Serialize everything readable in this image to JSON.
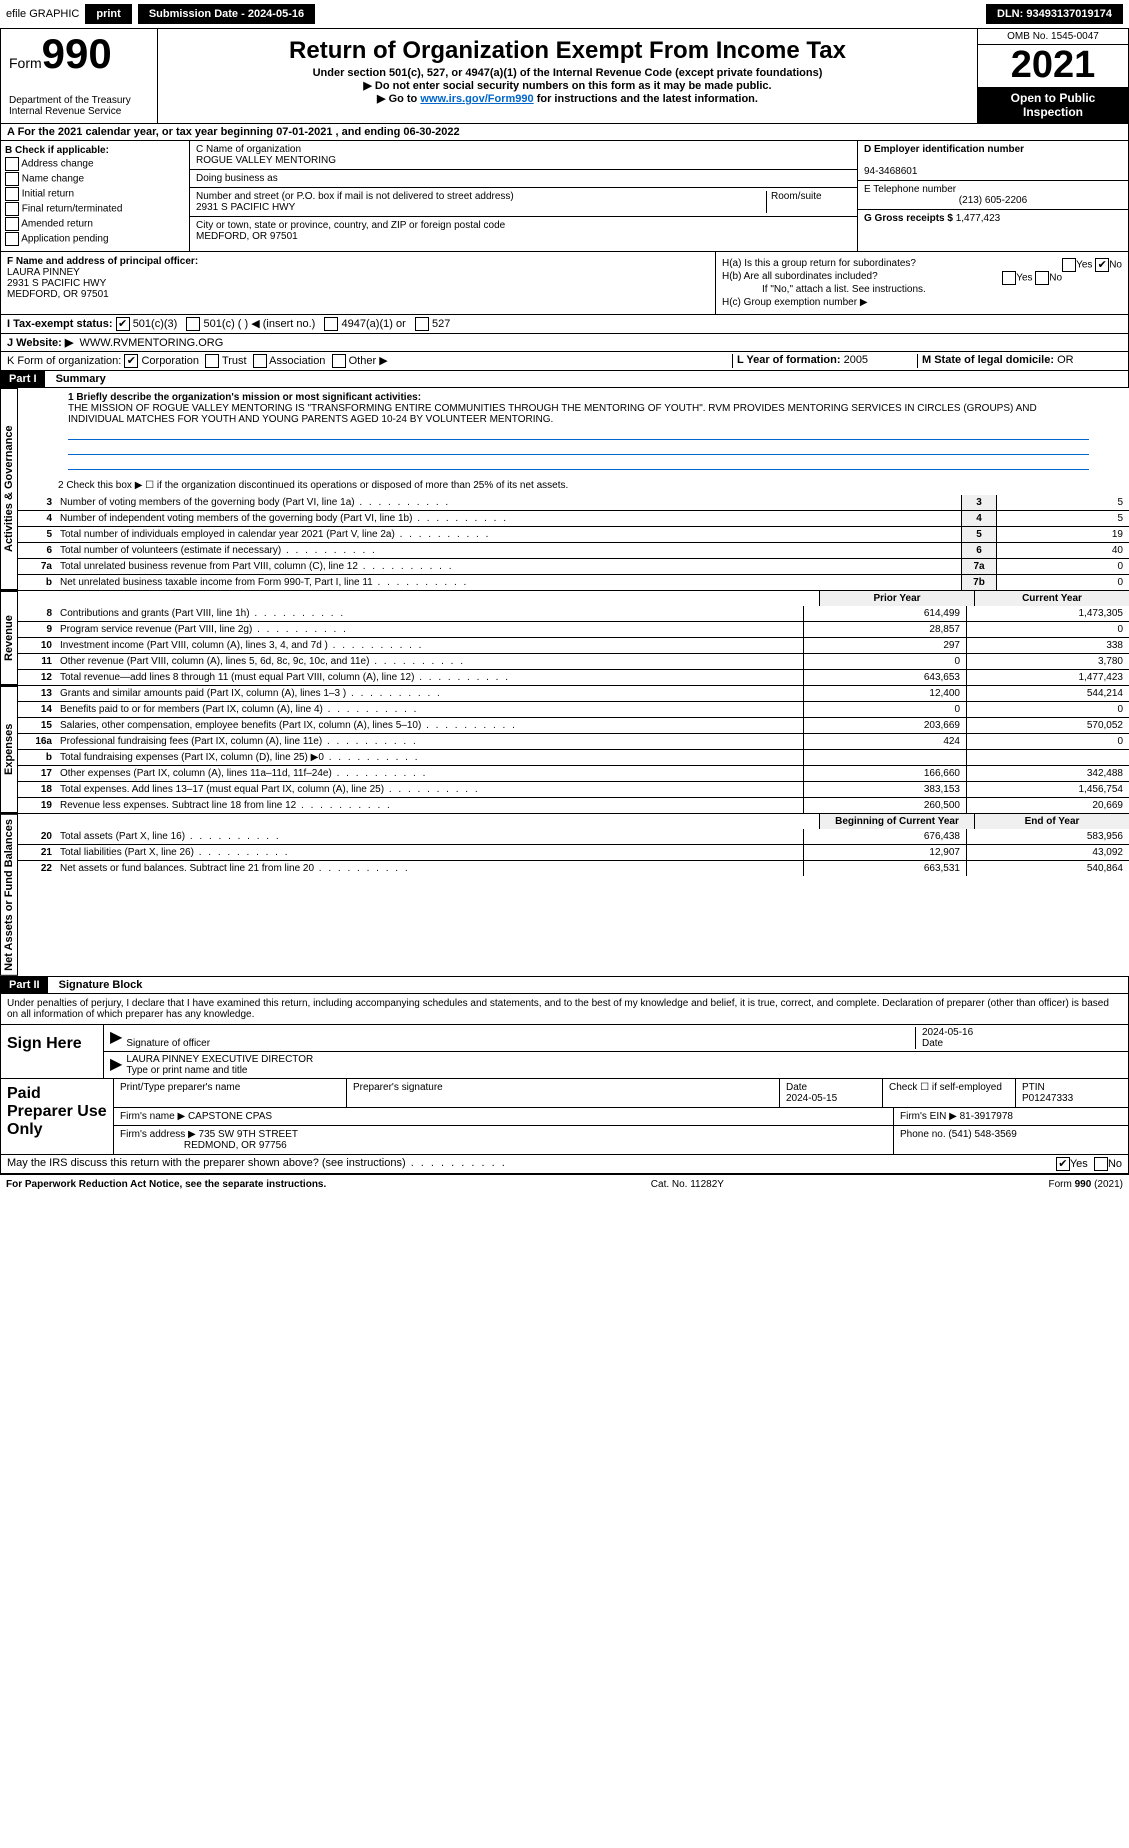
{
  "topbar": {
    "efile": "efile GRAPHIC",
    "print": "print",
    "subdate_label": "Submission Date - 2024-05-16",
    "dln_label": "DLN: 93493137019174"
  },
  "header": {
    "form_label": "Form",
    "form_num": "990",
    "dept": "Department of the Treasury",
    "irs": "Internal Revenue Service",
    "title": "Return of Organization Exempt From Income Tax",
    "subtitle": "Under section 501(c), 527, or 4947(a)(1) of the Internal Revenue Code (except private foundations)",
    "note1": "▶ Do not enter social security numbers on this form as it may be made public.",
    "note2_pre": "▶ Go to ",
    "note2_link": "www.irs.gov/Form990",
    "note2_post": " for instructions and the latest information.",
    "omb": "OMB No. 1545-0047",
    "year": "2021",
    "open": "Open to Public Inspection"
  },
  "period": {
    "line": "A For the 2021 calendar year, or tax year beginning 07-01-2021    , and ending 06-30-2022"
  },
  "box_b": {
    "label": "B Check if applicable:",
    "addr": "Address change",
    "name": "Name change",
    "initial": "Initial return",
    "final": "Final return/terminated",
    "amended": "Amended return",
    "app": "Application pending"
  },
  "box_c": {
    "name_label": "C Name of organization",
    "name": "ROGUE VALLEY MENTORING",
    "dba_label": "Doing business as",
    "street_label": "Number and street (or P.O. box if mail is not delivered to street address)",
    "room_label": "Room/suite",
    "street": "2931 S PACIFIC HWY",
    "city_label": "City or town, state or province, country, and ZIP or foreign postal code",
    "city": "MEDFORD, OR  97501"
  },
  "box_d": {
    "ein_label": "D Employer identification number",
    "ein": "94-3468601"
  },
  "box_e": {
    "tel_label": "E Telephone number",
    "tel": "(213) 605-2206"
  },
  "box_g": {
    "gross_label": "G Gross receipts $",
    "gross": "1,477,423"
  },
  "box_f": {
    "label": "F  Name and address of principal officer:",
    "name": "LAURA PINNEY",
    "addr1": "2931 S PACIFIC HWY",
    "addr2": "MEDFORD, OR  97501"
  },
  "box_h": {
    "ha": "H(a)  Is this a group return for subordinates?",
    "hb": "H(b)  Are all subordinates included?",
    "hb_note": "If \"No,\" attach a list. See instructions.",
    "hc": "H(c)  Group exemption number ▶",
    "yes": "Yes",
    "no": "No"
  },
  "box_i": {
    "label": "I  Tax-exempt status:",
    "c3": "501(c)(3)",
    "c": "501(c) (   ) ◀ (insert no.)",
    "a1": "4947(a)(1) or",
    "s527": "527"
  },
  "box_j": {
    "label": "J  Website: ▶",
    "url": "WWW.RVMENTORING.ORG"
  },
  "box_k": {
    "label": "K Form of organization:",
    "corp": "Corporation",
    "trust": "Trust",
    "assoc": "Association",
    "other": "Other ▶"
  },
  "box_l": {
    "label": "L Year of formation:",
    "val": "2005"
  },
  "box_m": {
    "label": "M State of legal domicile:",
    "val": "OR"
  },
  "part1": {
    "header": "Part I",
    "title": "Summary",
    "q1": "1  Briefly describe the organization's mission or most significant activities:",
    "mission": "THE MISSION OF ROGUE VALLEY MENTORING IS \"TRANSFORMING ENTIRE COMMUNITIES THROUGH THE MENTORING OF YOUTH\". RVM PROVIDES MENTORING SERVICES IN CIRCLES (GROUPS) AND INDIVIDUAL MATCHES FOR YOUTH AND YOUNG PARENTS AGED 10-24 BY VOLUNTEER MENTORING.",
    "q2": "2  Check this box ▶ ☐  if the organization discontinued its operations or disposed of more than 25% of its net assets."
  },
  "side": {
    "gov": "Activities & Governance",
    "rev": "Revenue",
    "exp": "Expenses",
    "net": "Net Assets or Fund Balances"
  },
  "gov_lines": [
    {
      "n": "3",
      "d": "Number of voting members of the governing body (Part VI, line 1a)",
      "box": "3",
      "v": "5"
    },
    {
      "n": "4",
      "d": "Number of independent voting members of the governing body (Part VI, line 1b)",
      "box": "4",
      "v": "5"
    },
    {
      "n": "5",
      "d": "Total number of individuals employed in calendar year 2021 (Part V, line 2a)",
      "box": "5",
      "v": "19"
    },
    {
      "n": "6",
      "d": "Total number of volunteers (estimate if necessary)",
      "box": "6",
      "v": "40"
    },
    {
      "n": "7a",
      "d": "Total unrelated business revenue from Part VIII, column (C), line 12",
      "box": "7a",
      "v": "0"
    },
    {
      "n": "b",
      "d": "Net unrelated business taxable income from Form 990-T, Part I, line 11",
      "box": "7b",
      "v": "0"
    }
  ],
  "col_hdr": {
    "prior": "Prior Year",
    "current": "Current Year"
  },
  "rev_lines": [
    {
      "n": "8",
      "d": "Contributions and grants (Part VIII, line 1h)",
      "p": "614,499",
      "c": "1,473,305"
    },
    {
      "n": "9",
      "d": "Program service revenue (Part VIII, line 2g)",
      "p": "28,857",
      "c": "0"
    },
    {
      "n": "10",
      "d": "Investment income (Part VIII, column (A), lines 3, 4, and 7d )",
      "p": "297",
      "c": "338"
    },
    {
      "n": "11",
      "d": "Other revenue (Part VIII, column (A), lines 5, 6d, 8c, 9c, 10c, and 11e)",
      "p": "0",
      "c": "3,780"
    },
    {
      "n": "12",
      "d": "Total revenue—add lines 8 through 11 (must equal Part VIII, column (A), line 12)",
      "p": "643,653",
      "c": "1,477,423"
    }
  ],
  "exp_lines": [
    {
      "n": "13",
      "d": "Grants and similar amounts paid (Part IX, column (A), lines 1–3 )",
      "p": "12,400",
      "c": "544,214"
    },
    {
      "n": "14",
      "d": "Benefits paid to or for members (Part IX, column (A), line 4)",
      "p": "0",
      "c": "0"
    },
    {
      "n": "15",
      "d": "Salaries, other compensation, employee benefits (Part IX, column (A), lines 5–10)",
      "p": "203,669",
      "c": "570,052"
    },
    {
      "n": "16a",
      "d": "Professional fundraising fees (Part IX, column (A), line 11e)",
      "p": "424",
      "c": "0"
    },
    {
      "n": "b",
      "d": "Total fundraising expenses (Part IX, column (D), line 25) ▶0",
      "p": "",
      "c": ""
    },
    {
      "n": "17",
      "d": "Other expenses (Part IX, column (A), lines 11a–11d, 11f–24e)",
      "p": "166,660",
      "c": "342,488"
    },
    {
      "n": "18",
      "d": "Total expenses. Add lines 13–17 (must equal Part IX, column (A), line 25)",
      "p": "383,153",
      "c": "1,456,754"
    },
    {
      "n": "19",
      "d": "Revenue less expenses. Subtract line 18 from line 12",
      "p": "260,500",
      "c": "20,669"
    }
  ],
  "net_hdr": {
    "begin": "Beginning of Current Year",
    "end": "End of Year"
  },
  "net_lines": [
    {
      "n": "20",
      "d": "Total assets (Part X, line 16)",
      "p": "676,438",
      "c": "583,956"
    },
    {
      "n": "21",
      "d": "Total liabilities (Part X, line 26)",
      "p": "12,907",
      "c": "43,092"
    },
    {
      "n": "22",
      "d": "Net assets or fund balances. Subtract line 21 from line 20",
      "p": "663,531",
      "c": "540,864"
    }
  ],
  "part2": {
    "header": "Part II",
    "title": "Signature Block",
    "decl": "Under penalties of perjury, I declare that I have examined this return, including accompanying schedules and statements, and to the best of my knowledge and belief, it is true, correct, and complete. Declaration of preparer (other than officer) is based on all information of which preparer has any knowledge."
  },
  "sign": {
    "label": "Sign Here",
    "sig_label": "Signature of officer",
    "date_label": "Date",
    "date": "2024-05-16",
    "name": "LAURA PINNEY  EXECUTIVE DIRECTOR",
    "name_label": "Type or print name and title"
  },
  "paid": {
    "label": "Paid Preparer Use Only",
    "prep_name_label": "Print/Type preparer's name",
    "prep_sig_label": "Preparer's signature",
    "date_label": "Date",
    "date": "2024-05-15",
    "self_label": "Check ☐ if self-employed",
    "ptin_label": "PTIN",
    "ptin": "P01247333",
    "firm_name_label": "Firm's name    ▶",
    "firm_name": "CAPSTONE CPAS",
    "firm_ein_label": "Firm's EIN ▶",
    "firm_ein": "81-3917978",
    "firm_addr_label": "Firm's address ▶",
    "firm_addr1": "735 SW 9TH STREET",
    "firm_addr2": "REDMOND, OR  97756",
    "phone_label": "Phone no.",
    "phone": "(541) 548-3569"
  },
  "discuss": {
    "q": "May the IRS discuss this return with the preparer shown above? (see instructions)",
    "yes": "Yes",
    "no": "No"
  },
  "footer": {
    "pra": "For Paperwork Reduction Act Notice, see the separate instructions.",
    "cat": "Cat. No. 11282Y",
    "form": "Form 990 (2021)"
  }
}
